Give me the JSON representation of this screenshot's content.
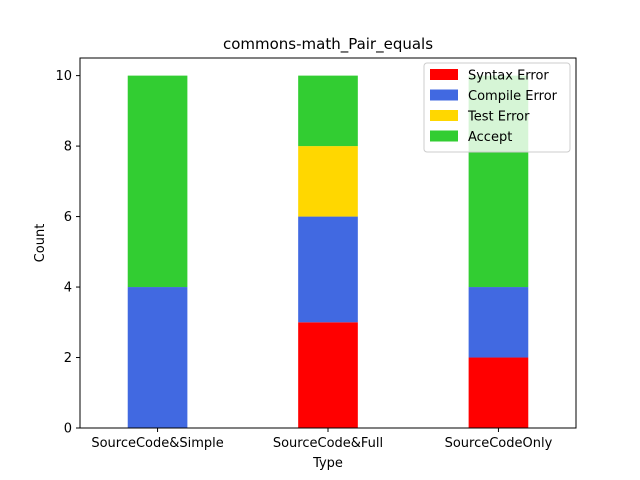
{
  "chart_data": {
    "type": "bar",
    "stacked": true,
    "title": "commons-math_Pair_equals",
    "xlabel": "Type",
    "ylabel": "Count",
    "categories": [
      "SourceCode&Simple",
      "SourceCode&Full",
      "SourceCodeOnly"
    ],
    "series": [
      {
        "name": "Syntax Error",
        "values": [
          0,
          3,
          2
        ],
        "color": "#ff0000"
      },
      {
        "name": "Compile Error",
        "values": [
          4,
          3,
          2
        ],
        "color": "#4169e1"
      },
      {
        "name": "Test Error",
        "values": [
          0,
          2,
          0
        ],
        "color": "#ffd700"
      },
      {
        "name": "Accept",
        "values": [
          6,
          2,
          6
        ],
        "color": "#32cd32"
      }
    ],
    "ylim": [
      0,
      10.5
    ],
    "yticks": [
      0,
      2,
      4,
      6,
      8,
      10
    ],
    "grid": false,
    "legend_position": "top-right"
  }
}
